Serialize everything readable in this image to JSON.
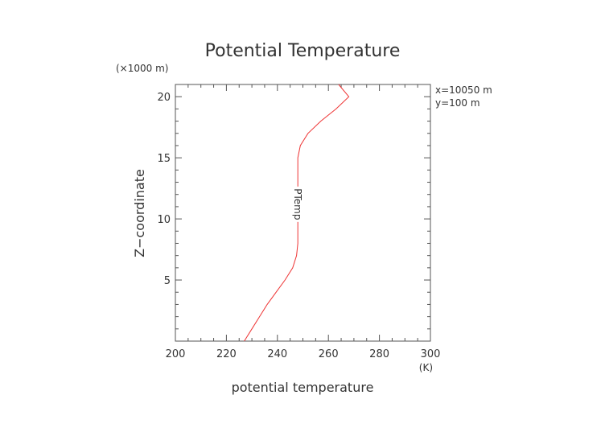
{
  "chart_data": {
    "type": "line",
    "title": "Potential Temperature",
    "xlabel": "potential temperature",
    "ylabel": "Z−coordinate",
    "x_unit": "(K)",
    "y_unit": "(×1000 m)",
    "xlim": [
      200,
      300
    ],
    "ylim": [
      0,
      21
    ],
    "xticks": [
      200,
      220,
      240,
      260,
      280,
      300
    ],
    "yticks": [
      5,
      10,
      15,
      20
    ],
    "grid": false,
    "annotations": [
      "x=10050 m",
      "y=100 m"
    ],
    "line_label": "PTemp",
    "color": "#ee3333",
    "series": [
      {
        "name": "PTemp",
        "points": [
          [
            227,
            0
          ],
          [
            230,
            1
          ],
          [
            233,
            2
          ],
          [
            236,
            3
          ],
          [
            239.5,
            4
          ],
          [
            243,
            5
          ],
          [
            246,
            6
          ],
          [
            247.5,
            7
          ],
          [
            248,
            8
          ],
          [
            248,
            9
          ],
          [
            248,
            10
          ],
          [
            248,
            11
          ],
          [
            248,
            12
          ],
          [
            248,
            13
          ],
          [
            248,
            14
          ],
          [
            248,
            15
          ],
          [
            249,
            16
          ],
          [
            252,
            17
          ],
          [
            257,
            18
          ],
          [
            263,
            19
          ],
          [
            268,
            20
          ],
          [
            264,
            21
          ]
        ]
      }
    ]
  }
}
